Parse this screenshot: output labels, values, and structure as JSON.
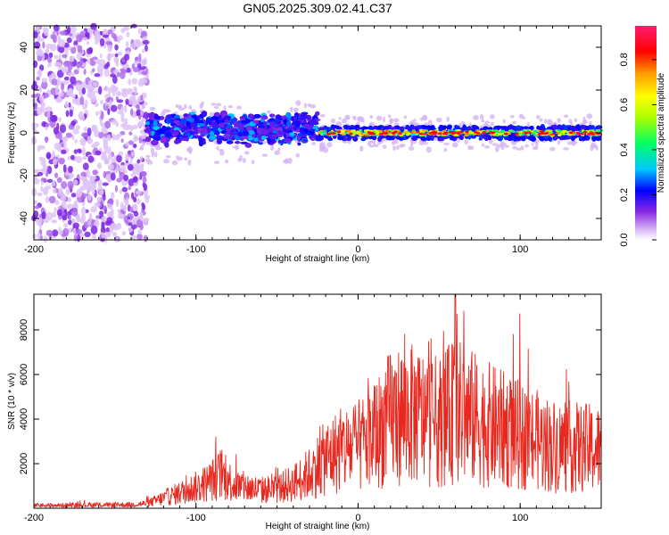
{
  "title": "GN05.2025.309.02.41.C37",
  "chart_data": [
    {
      "type": "heatmap",
      "name": "spectrogram",
      "xlabel": "Height of straight line (km)",
      "ylabel": "Frequency (Hz)",
      "xlim": [
        -200,
        150
      ],
      "ylim": [
        -50,
        50
      ],
      "xticks": [
        -200,
        -100,
        0,
        100
      ],
      "xtick_labels": [
        "-200",
        "-100",
        "0",
        "100"
      ],
      "yticks": [
        -40,
        -20,
        0,
        20,
        40
      ],
      "ytick_labels": [
        "-40",
        "-20",
        "0",
        "20",
        "40"
      ],
      "colorbar": {
        "label": "Normalized spectral amplitude",
        "range": [
          0,
          0.95
        ],
        "ticks": [
          0,
          0.2,
          0.4,
          0.6,
          0.8
        ],
        "tick_labels": [
          "0.0",
          "0.2",
          "0.4",
          "0.6",
          "0.8"
        ]
      },
      "regions": [
        {
          "x_range": [
            -200,
            -130
          ],
          "y_range": [
            -50,
            50
          ],
          "amplitude": 0.05,
          "description": "diffuse noise"
        },
        {
          "x_range": [
            -130,
            -25
          ],
          "freq_center": 2,
          "freq_halfwidth": 8,
          "amplitude": 0.2
        },
        {
          "x_range": [
            -25,
            150
          ],
          "freq_center": 0,
          "freq_halfwidth": 3,
          "amplitude": 0.85
        }
      ]
    },
    {
      "type": "line",
      "name": "snr",
      "xlabel": "Height of straight line (km)",
      "ylabel": "SNR (10 * v/v)",
      "xlim": [
        -200,
        150
      ],
      "ylim": [
        0,
        9600
      ],
      "xticks": [
        -200,
        -100,
        0,
        100
      ],
      "xtick_labels": [
        "-200",
        "-100",
        "0",
        "100"
      ],
      "yticks": [
        2000,
        4000,
        6000,
        8000
      ],
      "ytick_labels": [
        "2000",
        "4000",
        "6000",
        "8000"
      ],
      "color": "#e8281e",
      "envelope": {
        "x": [
          -200,
          -140,
          -130,
          -110,
          -95,
          -85,
          -75,
          -60,
          -50,
          -40,
          -30,
          -20,
          -10,
          0,
          10,
          20,
          30,
          50,
          60,
          80,
          100,
          120,
          150
        ],
        "y": [
          200,
          250,
          350,
          1100,
          1700,
          2400,
          1600,
          1300,
          1400,
          1800,
          2500,
          3600,
          4200,
          4400,
          5200,
          6500,
          6800,
          6200,
          7000,
          6000,
          5200,
          4500,
          4200
        ]
      },
      "peak": {
        "x": 60,
        "y": 9600
      }
    }
  ]
}
